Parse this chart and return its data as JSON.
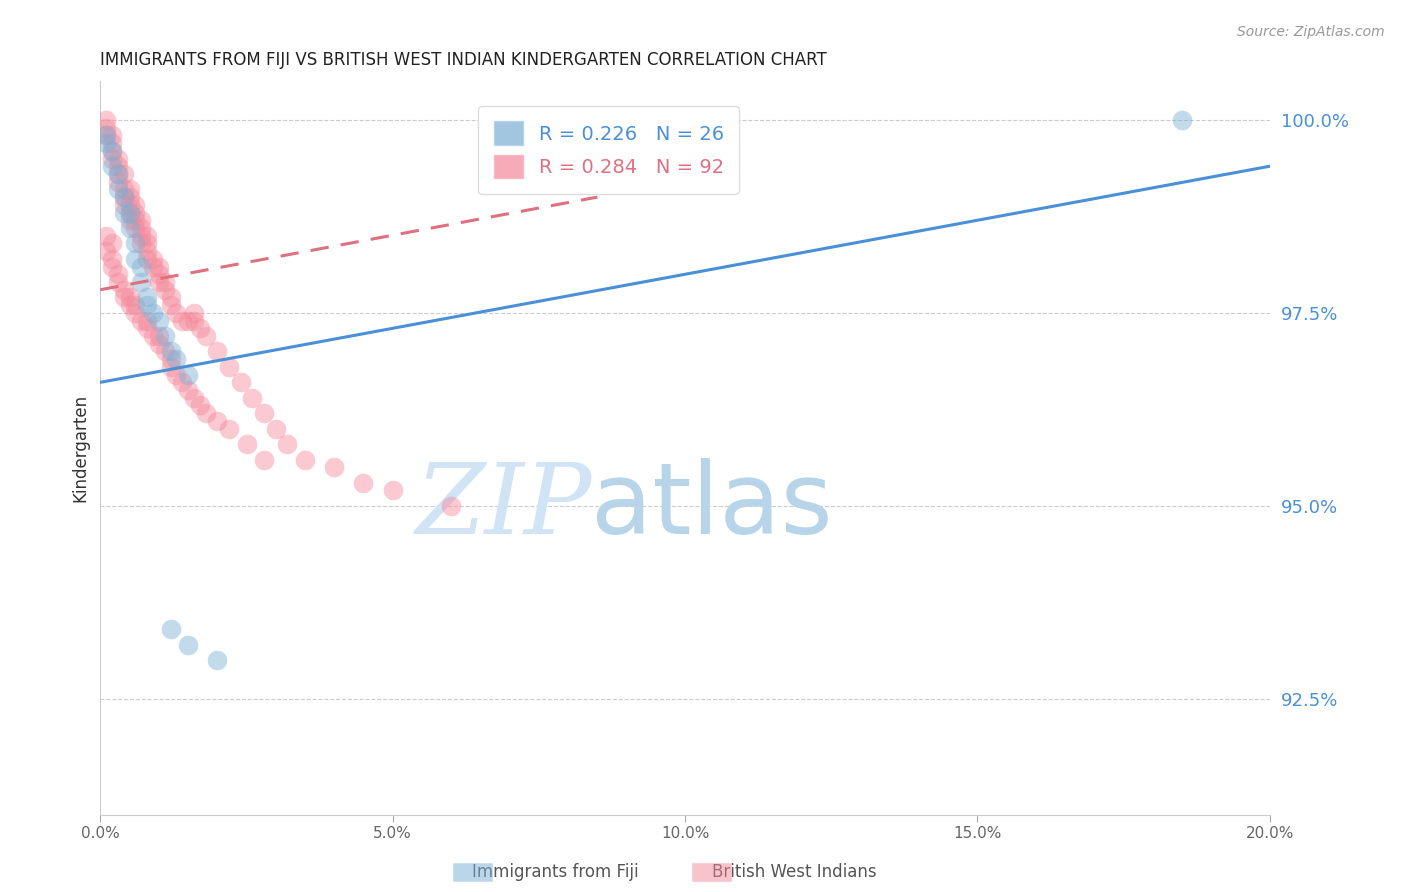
{
  "title": "IMMIGRANTS FROM FIJI VS BRITISH WEST INDIAN KINDERGARTEN CORRELATION CHART",
  "source": "Source: ZipAtlas.com",
  "ylabel": "Kindergarten",
  "xlim": [
    0.0,
    0.2
  ],
  "ylim": [
    0.91,
    1.005
  ],
  "yticks": [
    0.925,
    0.95,
    0.975,
    1.0
  ],
  "ytick_labels": [
    "92.5%",
    "95.0%",
    "97.5%",
    "100.0%"
  ],
  "xticks": [
    0.0,
    0.05,
    0.1,
    0.15,
    0.2
  ],
  "xtick_labels": [
    "0.0%",
    "5.0%",
    "10.0%",
    "15.0%",
    "20.0%"
  ],
  "legend_label_fiji": "R = 0.226   N = 26",
  "legend_label_bwi": "R = 0.284   N = 92",
  "fiji_color": "#7BAFD4",
  "bwi_color": "#F4889A",
  "fiji_line_color": "#4A90D9",
  "bwi_line_color": "#E07080",
  "watermark_zip": "ZIP",
  "watermark_atlas": "atlas",
  "watermark_color_zip": "#D0E4F5",
  "watermark_color_atlas": "#B8D4E8",
  "background_color": "#FFFFFF",
  "fiji_line_x": [
    0.0,
    0.2
  ],
  "fiji_line_y": [
    0.966,
    0.994
  ],
  "bwi_line_x": [
    0.0,
    0.085
  ],
  "bwi_line_y": [
    0.978,
    0.99
  ],
  "fiji_x": [
    0.001,
    0.001,
    0.002,
    0.002,
    0.003,
    0.003,
    0.004,
    0.004,
    0.005,
    0.005,
    0.006,
    0.006,
    0.007,
    0.007,
    0.008,
    0.008,
    0.009,
    0.01,
    0.011,
    0.012,
    0.013,
    0.015,
    0.185,
    0.012,
    0.015,
    0.02
  ],
  "fiji_y": [
    0.998,
    0.997,
    0.996,
    0.994,
    0.993,
    0.991,
    0.99,
    0.988,
    0.988,
    0.986,
    0.984,
    0.982,
    0.981,
    0.979,
    0.977,
    0.976,
    0.975,
    0.974,
    0.972,
    0.97,
    0.969,
    0.967,
    1.0,
    0.934,
    0.932,
    0.93
  ],
  "bwi_x": [
    0.001,
    0.001,
    0.001,
    0.002,
    0.002,
    0.002,
    0.002,
    0.003,
    0.003,
    0.003,
    0.003,
    0.004,
    0.004,
    0.004,
    0.004,
    0.005,
    0.005,
    0.005,
    0.005,
    0.005,
    0.006,
    0.006,
    0.006,
    0.006,
    0.007,
    0.007,
    0.007,
    0.007,
    0.008,
    0.008,
    0.008,
    0.008,
    0.009,
    0.009,
    0.01,
    0.01,
    0.01,
    0.011,
    0.011,
    0.012,
    0.012,
    0.013,
    0.014,
    0.015,
    0.016,
    0.016,
    0.017,
    0.018,
    0.02,
    0.022,
    0.024,
    0.026,
    0.028,
    0.03,
    0.032,
    0.035,
    0.04,
    0.045,
    0.05,
    0.06,
    0.001,
    0.001,
    0.002,
    0.002,
    0.002,
    0.003,
    0.003,
    0.004,
    0.004,
    0.005,
    0.005,
    0.006,
    0.006,
    0.007,
    0.008,
    0.008,
    0.009,
    0.01,
    0.01,
    0.011,
    0.012,
    0.012,
    0.013,
    0.014,
    0.015,
    0.016,
    0.017,
    0.018,
    0.02,
    0.022,
    0.025,
    0.028
  ],
  "bwi_y": [
    1.0,
    0.999,
    0.998,
    0.998,
    0.997,
    0.996,
    0.995,
    0.995,
    0.994,
    0.993,
    0.992,
    0.993,
    0.991,
    0.99,
    0.989,
    0.991,
    0.99,
    0.989,
    0.988,
    0.987,
    0.989,
    0.988,
    0.987,
    0.986,
    0.987,
    0.986,
    0.985,
    0.984,
    0.985,
    0.984,
    0.983,
    0.982,
    0.982,
    0.981,
    0.981,
    0.98,
    0.979,
    0.979,
    0.978,
    0.977,
    0.976,
    0.975,
    0.974,
    0.974,
    0.974,
    0.975,
    0.973,
    0.972,
    0.97,
    0.968,
    0.966,
    0.964,
    0.962,
    0.96,
    0.958,
    0.956,
    0.955,
    0.953,
    0.952,
    0.95,
    0.985,
    0.983,
    0.982,
    0.981,
    0.984,
    0.98,
    0.979,
    0.978,
    0.977,
    0.977,
    0.976,
    0.976,
    0.975,
    0.974,
    0.974,
    0.973,
    0.972,
    0.972,
    0.971,
    0.97,
    0.969,
    0.968,
    0.967,
    0.966,
    0.965,
    0.964,
    0.963,
    0.962,
    0.961,
    0.96,
    0.958,
    0.956
  ]
}
